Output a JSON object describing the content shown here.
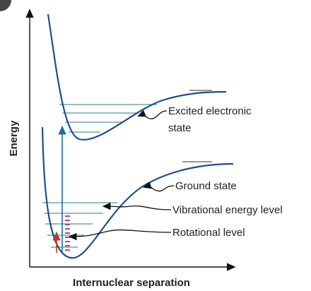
{
  "axes": {
    "y_label": "Energy",
    "x_label": "Internuclear separation"
  },
  "labels": {
    "excited_state": [
      "Excited electronic",
      "state"
    ],
    "ground_state": "Ground state",
    "vibrational_level": "Vibrational energy level",
    "rotational_level": "Rotational level"
  }
}
